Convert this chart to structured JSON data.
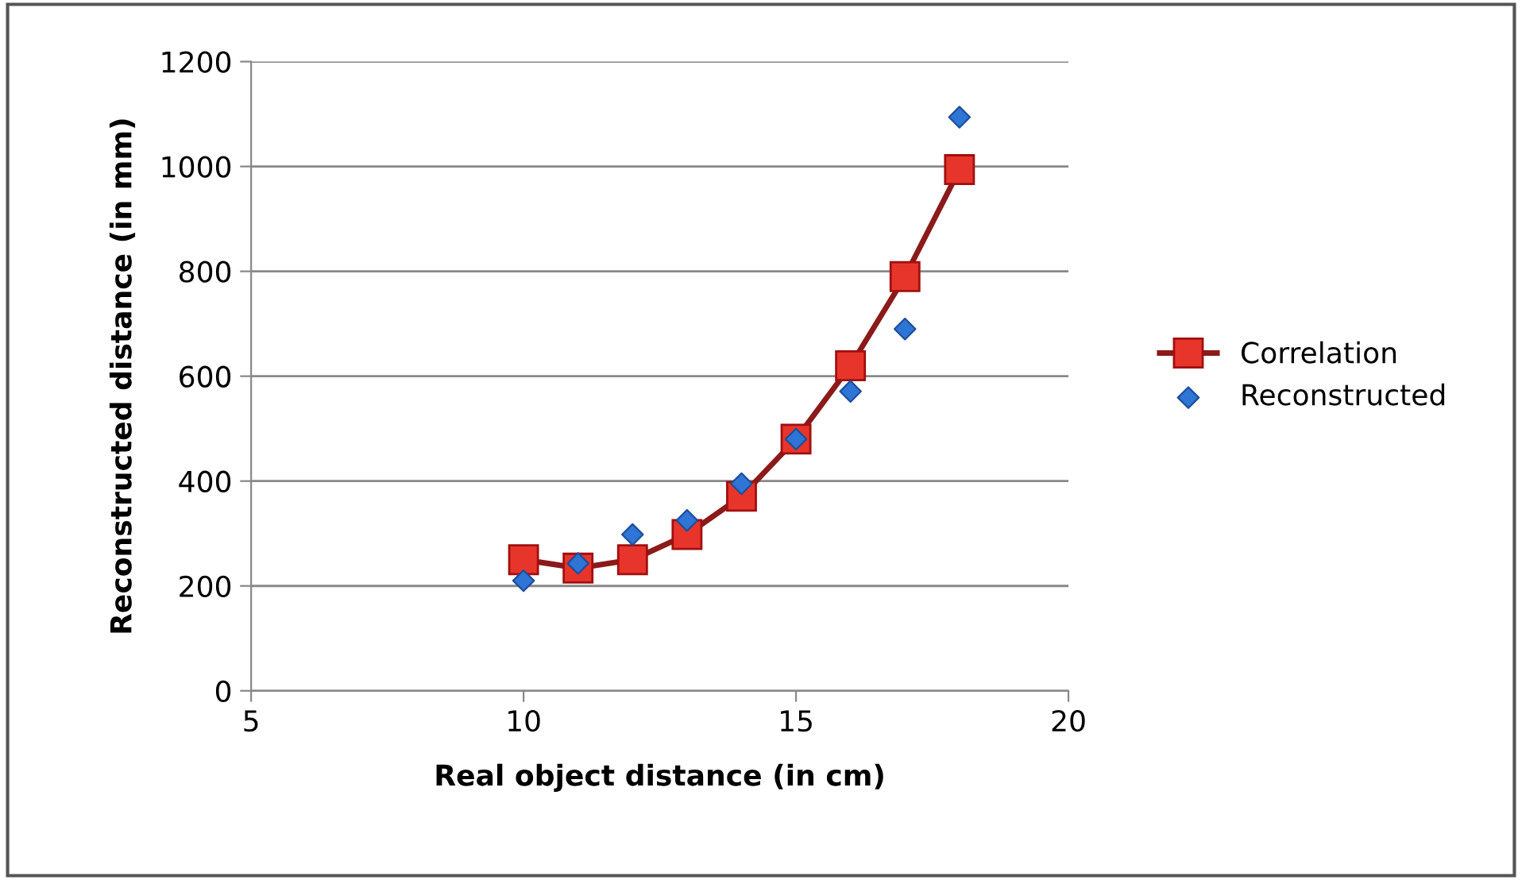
{
  "chart_data": {
    "type": "line",
    "xlabel": "Real object distance (in cm)",
    "ylabel": "Reconstructed distance (in mm)",
    "xlim": [
      5,
      20
    ],
    "xticks": [
      5,
      10,
      15,
      20
    ],
    "ylim": [
      0,
      1200
    ],
    "yticks": [
      0,
      200,
      400,
      600,
      800,
      1000,
      1200
    ],
    "grid": "y",
    "legend": "right",
    "series": [
      {
        "name": "Correlation",
        "marker": "square",
        "color": "#8b1a1a",
        "x": [
          10,
          11,
          12,
          13,
          14,
          15,
          16,
          17,
          18
        ],
        "values": [
          250,
          234,
          250,
          298,
          371,
          480,
          620,
          790,
          994
        ]
      },
      {
        "name": "Reconstructed",
        "type": "scatter",
        "marker": "diamond",
        "color": "#2e75d6",
        "x": [
          10,
          11,
          12,
          13,
          14,
          15,
          16,
          17,
          18
        ],
        "values": [
          210,
          243,
          298,
          325,
          395,
          480,
          571,
          690,
          1094
        ]
      }
    ]
  }
}
